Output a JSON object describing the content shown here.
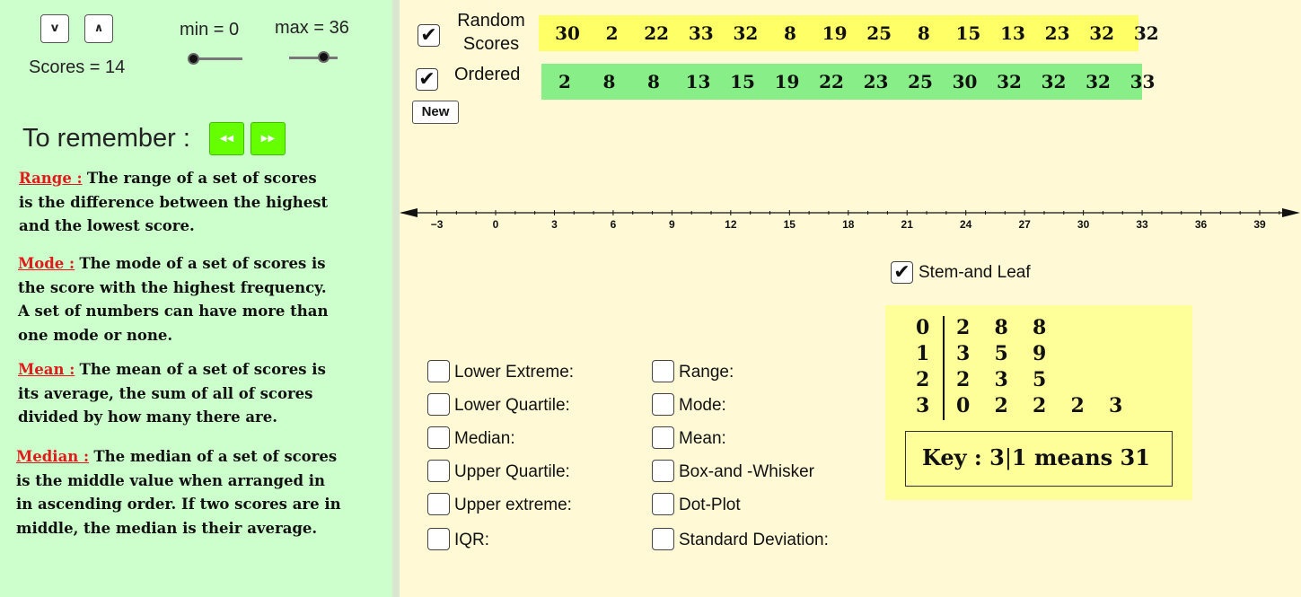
{
  "controls": {
    "down_button": "v",
    "up_button": "∧",
    "scores_label": "Scores = 14",
    "min_label": "min = 0",
    "max_label": "max = 36",
    "min_value": 0,
    "max_value": 36
  },
  "remember": {
    "title": "To remember :",
    "prev_icon": "rewind-icon",
    "next_icon": "fast-forward-icon",
    "range_term": "Range :",
    "range_lines": [
      "The range of a set of scores",
      "is the difference between the highest",
      "and the lowest score."
    ],
    "mode_term": "Mode :",
    "mode_lines": [
      "The mode of a set of scores is",
      "the score with the highest frequency.",
      "A set of numbers can have more than",
      "one mode or none."
    ],
    "mean_term": "Mean :",
    "mean_lines": [
      "The mean of a set of scores is",
      "its average, the sum of all of scores",
      "divided by how many there are."
    ],
    "median_term": "Median :",
    "median_lines": [
      "The median of a set of scores",
      "is the middle value when arranged in",
      "in ascending order. If two scores are in",
      "middle, the median is their average."
    ]
  },
  "scores": {
    "random_label_1": "Random",
    "random_label_2": "Scores",
    "random_checked": true,
    "ordered_label": "Ordered",
    "ordered_checked": true,
    "random": [
      "30",
      "2",
      "22",
      "33",
      "32",
      "8",
      "19",
      "25",
      "8",
      "15",
      "13",
      "23",
      "32",
      "32"
    ],
    "ordered": [
      "2",
      "8",
      "8",
      "13",
      "15",
      "19",
      "22",
      "23",
      "25",
      "30",
      "32",
      "32",
      "32",
      "33"
    ],
    "new_button": "New",
    "random_bg": "#ffff66",
    "ordered_bg": "#88ee88"
  },
  "number_line": {
    "labels": [
      "−3",
      "0",
      "3",
      "6",
      "9",
      "12",
      "15",
      "18",
      "21",
      "24",
      "27",
      "30",
      "33",
      "36",
      "39"
    ]
  },
  "stats_checkboxes": {
    "left": [
      "Lower Extreme:",
      "Lower Quartile:",
      "Median:",
      "Upper Quartile:",
      "Upper extreme:",
      "IQR:"
    ],
    "right": [
      "Range:",
      "Mode:",
      "Mean:",
      "Box-and -Whisker",
      "Dot-Plot",
      "Standard Deviation:"
    ]
  },
  "stem_leaf": {
    "checkbox_label": "Stem-and Leaf",
    "checked": true,
    "rows": [
      {
        "stem": "0",
        "leaves": [
          "2",
          "8",
          "8"
        ]
      },
      {
        "stem": "1",
        "leaves": [
          "3",
          "5",
          "9"
        ]
      },
      {
        "stem": "2",
        "leaves": [
          "2",
          "3",
          "5"
        ]
      },
      {
        "stem": "3",
        "leaves": [
          "0",
          "2",
          "2",
          "2",
          "3"
        ]
      }
    ],
    "key_label": "Key :",
    "key_stem": "3",
    "key_leaf": "1 means 31"
  }
}
